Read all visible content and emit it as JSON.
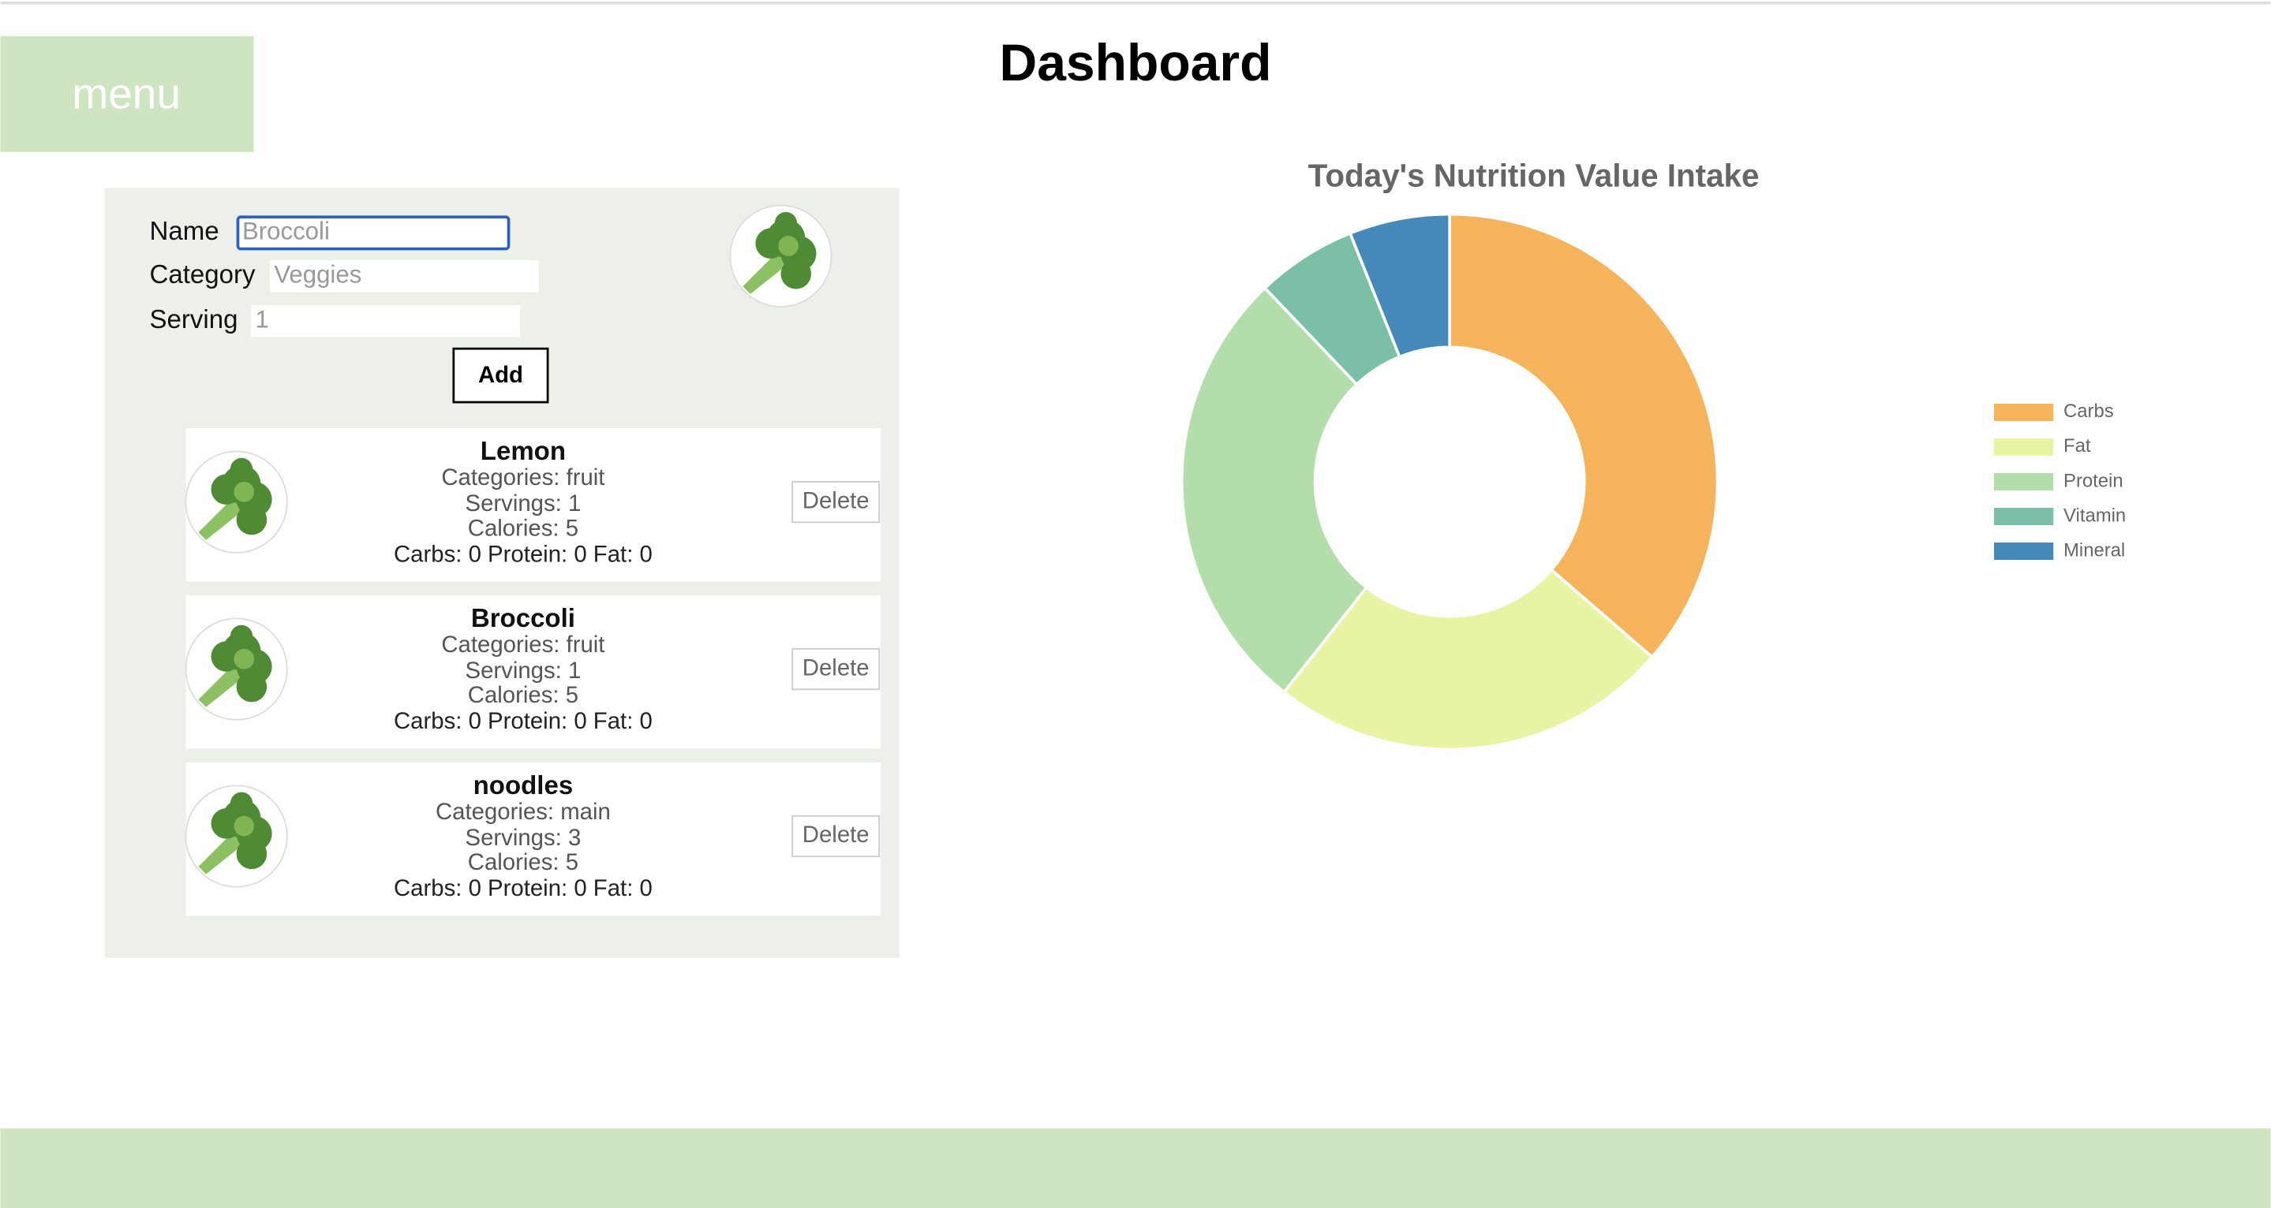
{
  "header": {
    "title": "Dashboard",
    "menu": "menu"
  },
  "form": {
    "fields": [
      {
        "label": "Name",
        "placeholder": "Broccoli"
      },
      {
        "label": "Category",
        "placeholder": "Veggies"
      },
      {
        "label": "Serving",
        "placeholder": "1"
      }
    ],
    "button": "Add"
  },
  "items": [
    {
      "name": "Lemon",
      "category": "Categories: fruit",
      "servings": "Servings: 1",
      "calories": "Calories: 5",
      "macros": "Carbs: 0 Protein: 0 Fat: 0",
      "action": "Delete"
    },
    {
      "name": "Broccoli",
      "category": "Categories: fruit",
      "servings": "Servings: 1",
      "calories": "Calories: 5",
      "macros": "Carbs: 0 Protein: 0 Fat: 0",
      "action": "Delete"
    },
    {
      "name": "noodles",
      "category": "Categories: main",
      "servings": "Servings: 3",
      "calories": "Calories: 5",
      "macros": "Carbs: 0 Protein: 0 Fat: 0",
      "action": "Delete"
    }
  ],
  "chart_data": {
    "type": "pie",
    "title": "Today's Nutrition Value Intake",
    "donut": true,
    "legend": "right",
    "categories": [
      "Carbs",
      "Fat",
      "Protein",
      "Vitamin",
      "Mineral"
    ],
    "values": [
      36,
      24,
      27,
      6,
      6
    ],
    "colors": [
      "#f5b45c",
      "#e8f4a4",
      "#b3ddaa",
      "#7bbfa7",
      "#4588ba"
    ]
  }
}
